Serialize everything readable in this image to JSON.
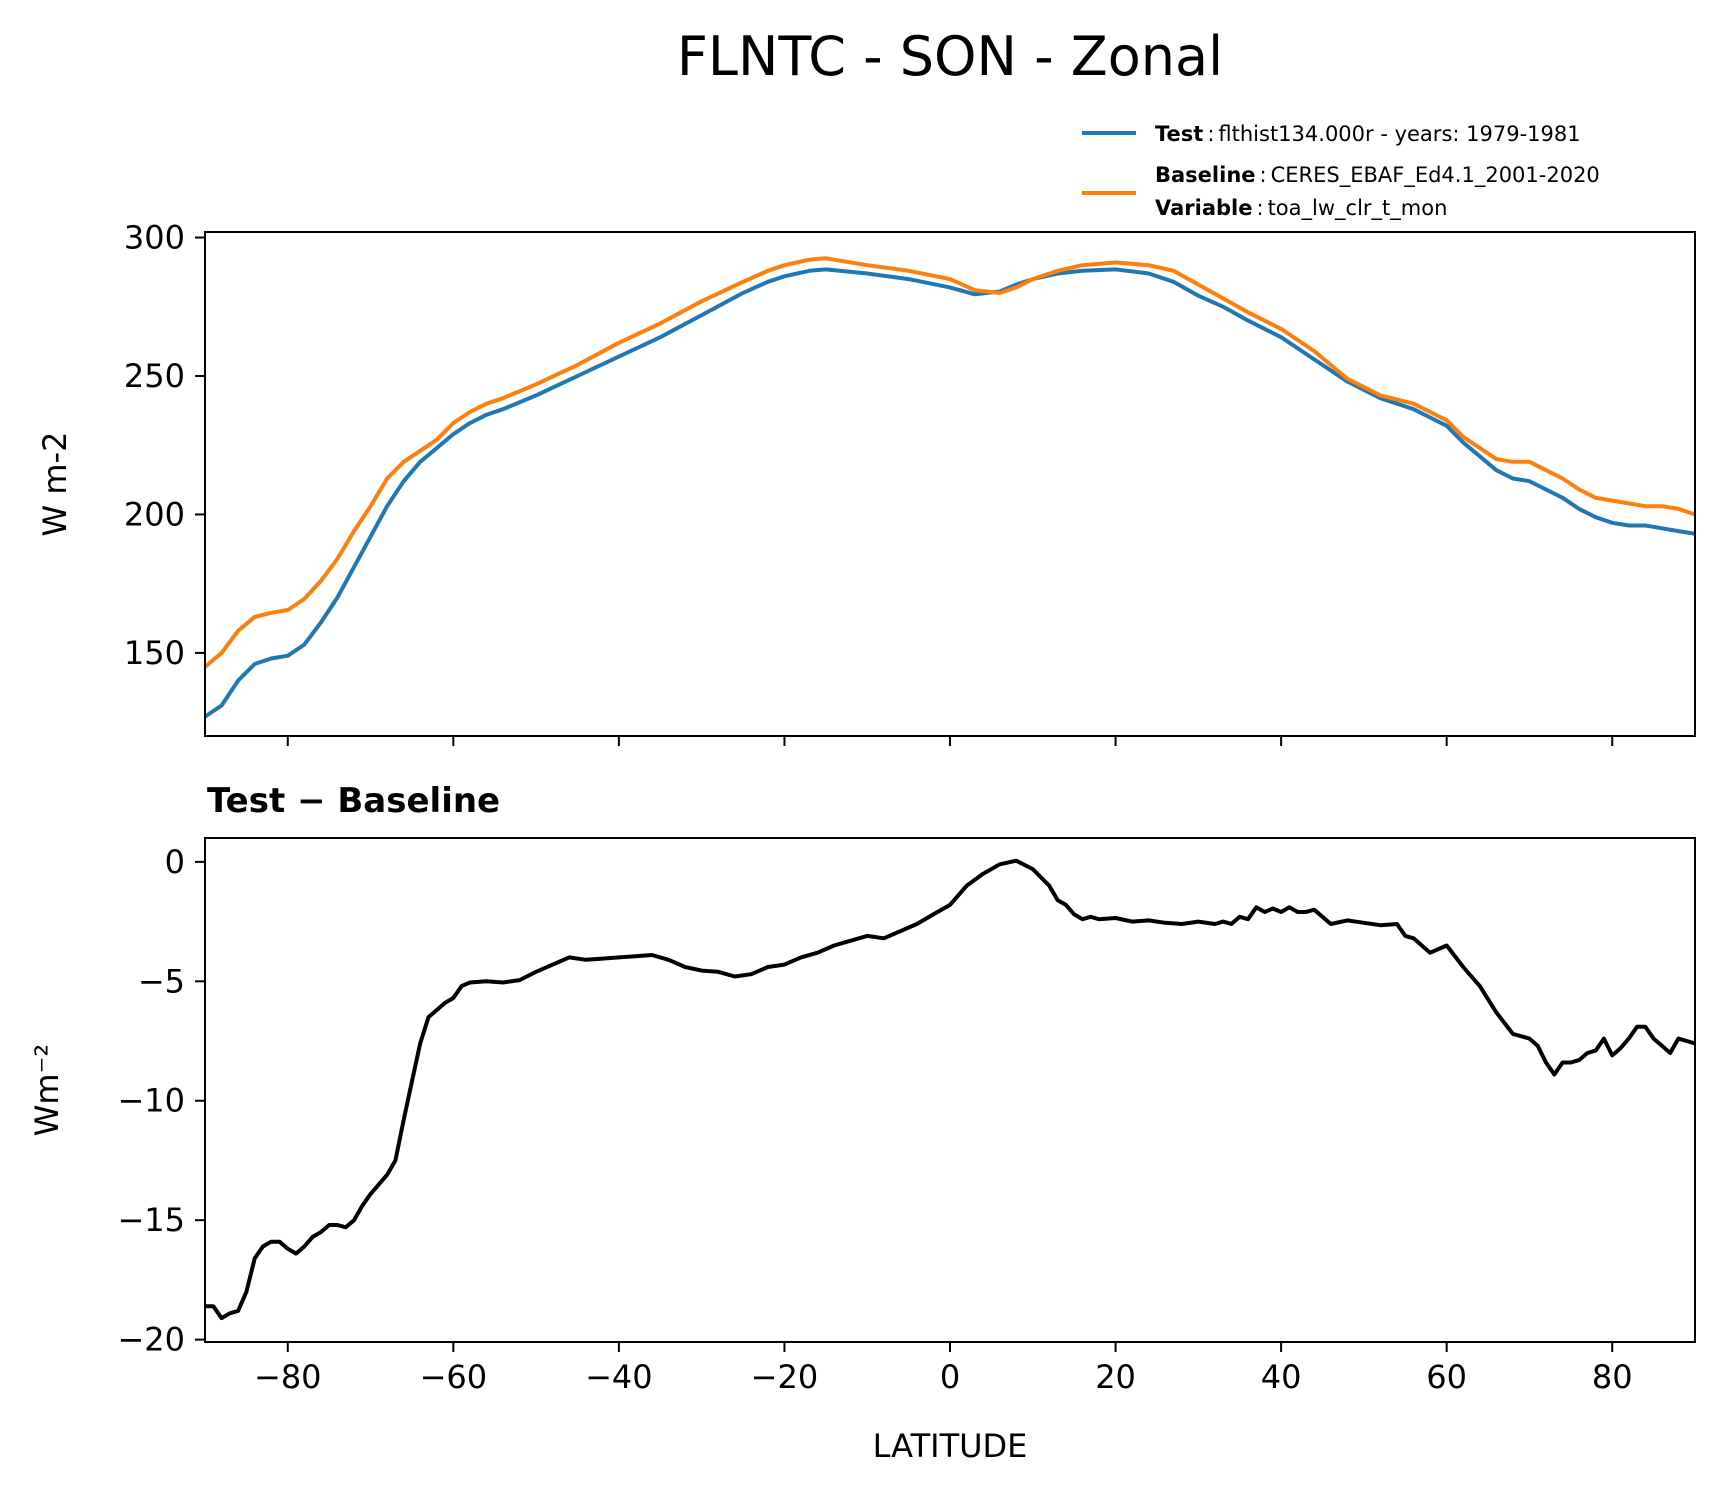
{
  "figure": {
    "title": "FLNTC - SON - Zonal"
  },
  "chart_data": [
    {
      "type": "line",
      "panel": "top",
      "title": "",
      "xlabel": "",
      "ylabel": "W m-2",
      "xlim": [
        -90,
        90
      ],
      "ylim": [
        120,
        302
      ],
      "xticks": [
        -80,
        -60,
        -40,
        -20,
        0,
        20,
        40,
        60,
        80
      ],
      "yticks": [
        150,
        200,
        250,
        300
      ],
      "ytick_labels": [
        "150",
        "200",
        "250",
        "300"
      ],
      "legend": {
        "placement": "upper-right, above plot",
        "entries": [
          {
            "bold": "Test",
            "sep": ":",
            "text": "flthist134.000r - years: 1979-1981",
            "color": "#1f77b4"
          },
          {
            "bold": "Baseline",
            "sep": ":",
            "text": "CERES_EBAF_Ed4.1_2001-2020",
            "color": "#ff7f0e"
          },
          {
            "bold": "Variable",
            "sep": ":",
            "text": "toa_lw_clr_t_mon",
            "color": ""
          }
        ]
      },
      "series": [
        {
          "color": "#1f77b4",
          "x": [
            -90,
            -88,
            -86,
            -84,
            -82,
            -80,
            -78,
            -76,
            -74,
            -72,
            -70,
            -68,
            -66,
            -64,
            -62,
            -60,
            -58,
            -56,
            -54,
            -50,
            -45,
            -40,
            -35,
            -30,
            -25,
            -22,
            -20,
            -17,
            -15,
            -10,
            -5,
            0,
            3,
            6,
            8,
            10,
            13,
            16,
            20,
            24,
            27,
            30,
            33,
            36,
            40,
            44,
            48,
            52,
            56,
            58,
            60,
            62,
            64,
            66,
            68,
            70,
            72,
            74,
            76,
            78,
            80,
            82,
            84,
            86,
            88,
            90
          ],
          "y": [
            127,
            131,
            140,
            146,
            148,
            149,
            153,
            161,
            170,
            181,
            192,
            203,
            212,
            219,
            224,
            229,
            233,
            236,
            238,
            243,
            250,
            257,
            264,
            272,
            280,
            284,
            286,
            288,
            288.5,
            287,
            285,
            282,
            279.5,
            280.5,
            283,
            285,
            287,
            288,
            288.5,
            287,
            284,
            279,
            275,
            270,
            264,
            256,
            248,
            242,
            238,
            235,
            232,
            226,
            221,
            216,
            213,
            212,
            209,
            206,
            202,
            199,
            197,
            196,
            196,
            195,
            194,
            193
          ]
        },
        {
          "color": "#ff7f0e",
          "x": [
            -90,
            -88,
            -86,
            -84,
            -82,
            -80,
            -78,
            -76,
            -74,
            -72,
            -70,
            -68,
            -66,
            -64,
            -62,
            -60,
            -58,
            -56,
            -54,
            -50,
            -45,
            -40,
            -35,
            -30,
            -25,
            -22,
            -20,
            -17,
            -15,
            -10,
            -5,
            0,
            3,
            6,
            8,
            10,
            13,
            16,
            20,
            24,
            27,
            30,
            33,
            36,
            40,
            44,
            48,
            52,
            56,
            58,
            60,
            62,
            64,
            66,
            68,
            70,
            72,
            74,
            76,
            78,
            80,
            82,
            84,
            86,
            88,
            90
          ],
          "y": [
            145,
            150,
            158,
            163,
            164.5,
            165.5,
            169.5,
            176,
            184,
            194,
            203,
            213,
            219,
            223,
            227,
            233,
            237,
            240,
            242,
            247,
            254,
            262,
            269,
            277,
            284,
            288,
            290,
            292,
            292.5,
            290,
            288,
            285,
            281,
            280,
            282,
            285,
            288,
            290,
            291,
            290,
            288,
            283,
            278,
            273,
            267,
            259,
            249,
            243,
            240,
            237,
            234,
            228,
            224,
            220,
            219,
            219,
            216,
            213,
            209,
            206,
            205,
            204,
            203,
            203,
            202,
            200
          ]
        }
      ]
    },
    {
      "type": "line",
      "panel": "bottom",
      "title": "Test − Baseline",
      "xlabel": "LATITUDE",
      "ylabel": "Wm⁻²",
      "xlim": [
        -90,
        90
      ],
      "ylim": [
        -20.1,
        1.0
      ],
      "xticks": [
        -80,
        -60,
        -40,
        -20,
        0,
        20,
        40,
        60,
        80
      ],
      "xtick_labels": [
        "−80",
        "−60",
        "−40",
        "−20",
        "0",
        "20",
        "40",
        "60",
        "80"
      ],
      "yticks": [
        -20,
        -15,
        -10,
        -5,
        0
      ],
      "ytick_labels": [
        "−20",
        "−15",
        "−10",
        "−5",
        "0"
      ],
      "series": [
        {
          "color": "#000000",
          "x": [
            -90,
            -89,
            -88,
            -87,
            -86,
            -85,
            -84,
            -83,
            -82,
            -81,
            -80,
            -79,
            -78,
            -77,
            -76,
            -75,
            -74,
            -73,
            -72,
            -71,
            -70,
            -69,
            -68,
            -67,
            -66,
            -65,
            -64,
            -63,
            -62,
            -61,
            -60,
            -59,
            -58,
            -56,
            -54,
            -52,
            -50,
            -48,
            -46,
            -44,
            -42,
            -40,
            -38,
            -36,
            -34,
            -32,
            -30,
            -28,
            -26,
            -24,
            -22,
            -20,
            -18,
            -16,
            -14,
            -12,
            -10,
            -8,
            -6,
            -4,
            -2,
            0,
            2,
            4,
            6,
            8,
            10,
            12,
            13,
            14,
            15,
            16,
            17,
            18,
            20,
            22,
            24,
            26,
            28,
            30,
            32,
            33,
            34,
            35,
            36,
            37,
            38,
            39,
            40,
            41,
            42,
            43,
            44,
            46,
            48,
            50,
            52,
            54,
            55,
            56,
            58,
            60,
            62,
            64,
            66,
            68,
            70,
            71,
            72,
            73,
            74,
            75,
            76,
            77,
            78,
            79,
            80,
            81,
            82,
            83,
            84,
            85,
            86,
            87,
            88,
            89,
            90
          ],
          "y": [
            -18.6,
            -18.6,
            -19.1,
            -18.9,
            -18.8,
            -18,
            -16.6,
            -16.1,
            -15.9,
            -15.9,
            -16.2,
            -16.4,
            -16.1,
            -15.7,
            -15.5,
            -15.2,
            -15.2,
            -15.3,
            -15,
            -14.4,
            -13.9,
            -13.5,
            -13.1,
            -12.5,
            -10.8,
            -9.2,
            -7.6,
            -6.5,
            -6.2,
            -5.9,
            -5.7,
            -5.2,
            -5.05,
            -5.0,
            -5.05,
            -4.95,
            -4.6,
            -4.3,
            -4.0,
            -4.1,
            -4.05,
            -4.0,
            -3.95,
            -3.9,
            -4.1,
            -4.4,
            -4.55,
            -4.6,
            -4.8,
            -4.7,
            -4.4,
            -4.3,
            -4.0,
            -3.8,
            -3.5,
            -3.3,
            -3.1,
            -3.2,
            -2.9,
            -2.6,
            -2.2,
            -1.8,
            -1.0,
            -0.5,
            -0.1,
            0.05,
            -0.3,
            -1.0,
            -1.6,
            -1.8,
            -2.2,
            -2.4,
            -2.3,
            -2.4,
            -2.35,
            -2.5,
            -2.45,
            -2.55,
            -2.6,
            -2.5,
            -2.6,
            -2.5,
            -2.6,
            -2.3,
            -2.4,
            -1.9,
            -2.1,
            -1.95,
            -2.1,
            -1.9,
            -2.1,
            -2.1,
            -2.0,
            -2.6,
            -2.45,
            -2.55,
            -2.65,
            -2.6,
            -3.1,
            -3.2,
            -3.8,
            -3.5,
            -4.4,
            -5.2,
            -6.3,
            -7.2,
            -7.4,
            -7.7,
            -8.4,
            -8.9,
            -8.4,
            -8.4,
            -8.3,
            -8.0,
            -7.9,
            -7.4,
            -8.1,
            -7.8,
            -7.4,
            -6.9,
            -6.9,
            -7.4,
            -7.7,
            -8.0,
            -7.4,
            -7.5,
            -7.6
          ]
        }
      ]
    }
  ]
}
